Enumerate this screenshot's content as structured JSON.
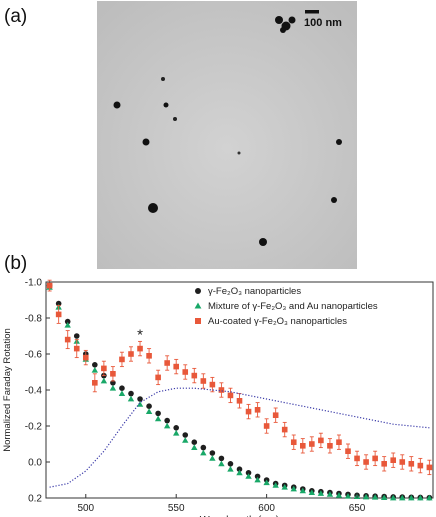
{
  "panel_a": {
    "label": "(a)",
    "scalebar_text": "100 nm",
    "background": "#c9c9c9"
  },
  "panel_b": {
    "label": "(b)"
  },
  "chart_data": {
    "type": "scatter",
    "xlabel": "Wavelength (nm)",
    "ylabel": "Normalized Faraday Rotation",
    "xlim": [
      478,
      692
    ],
    "ylim": [
      -1.0,
      0.2
    ],
    "y_inverted": true,
    "x_ticks": [
      500,
      550,
      600,
      650
    ],
    "y_ticks": [
      "-1.0",
      "-0.8",
      "-0.6",
      "-0.4",
      "-0.2",
      "0.0",
      "0.2"
    ],
    "y_tick_values": [
      -1.0,
      -0.8,
      -0.6,
      -0.4,
      -0.2,
      0.0,
      0.2
    ],
    "annotation": "*",
    "annotation_x": 530,
    "annotation_y": -0.68,
    "legend_position": "top-right",
    "series": [
      {
        "name": "γ-Fe₂O₃ nanoparticles",
        "marker": "circle",
        "color": "#1f1f1f",
        "x": [
          480,
          485,
          490,
          495,
          500,
          505,
          510,
          515,
          520,
          525,
          530,
          535,
          540,
          545,
          550,
          555,
          560,
          565,
          570,
          575,
          580,
          585,
          590,
          595,
          600,
          605,
          610,
          615,
          620,
          625,
          630,
          635,
          640,
          645,
          650,
          655,
          660,
          665,
          670,
          675,
          680,
          685,
          690
        ],
        "y": [
          -0.98,
          -0.88,
          -0.78,
          -0.7,
          -0.6,
          -0.54,
          -0.48,
          -0.44,
          -0.41,
          -0.38,
          -0.35,
          -0.31,
          -0.27,
          -0.23,
          -0.19,
          -0.15,
          -0.11,
          -0.08,
          -0.05,
          -0.02,
          0.01,
          0.04,
          0.06,
          0.08,
          0.1,
          0.12,
          0.13,
          0.14,
          0.15,
          0.16,
          0.165,
          0.17,
          0.175,
          0.18,
          0.185,
          0.188,
          0.19,
          0.192,
          0.194,
          0.195,
          0.196,
          0.197,
          0.198
        ]
      },
      {
        "name": "Mixture of γ-Fe₂O₃ and Au nanoparticles",
        "marker": "triangle",
        "color": "#19a868",
        "x": [
          480,
          485,
          490,
          495,
          500,
          505,
          510,
          515,
          520,
          525,
          530,
          535,
          540,
          545,
          550,
          555,
          560,
          565,
          570,
          575,
          580,
          585,
          590,
          595,
          600,
          605,
          610,
          615,
          620,
          625,
          630,
          635,
          640,
          645,
          650,
          655,
          660,
          665,
          670,
          675,
          680,
          685,
          690
        ],
        "y": [
          -0.97,
          -0.86,
          -0.76,
          -0.67,
          -0.57,
          -0.51,
          -0.45,
          -0.41,
          -0.38,
          -0.35,
          -0.32,
          -0.28,
          -0.24,
          -0.2,
          -0.16,
          -0.12,
          -0.08,
          -0.05,
          -0.02,
          0.01,
          0.04,
          0.06,
          0.08,
          0.1,
          0.115,
          0.13,
          0.14,
          0.15,
          0.16,
          0.17,
          0.175,
          0.18,
          0.185,
          0.19,
          0.192,
          0.194,
          0.196,
          0.198,
          0.2,
          0.2,
          0.2,
          0.2,
          0.2
        ]
      },
      {
        "name": "Au-coated γ-Fe₂O₃ nanoparticles",
        "marker": "square",
        "color": "#e8583a",
        "x": [
          480,
          485,
          490,
          495,
          500,
          505,
          510,
          515,
          520,
          525,
          530,
          535,
          540,
          545,
          550,
          555,
          560,
          565,
          570,
          575,
          580,
          585,
          590,
          595,
          600,
          605,
          610,
          615,
          620,
          625,
          630,
          635,
          640,
          645,
          650,
          655,
          660,
          665,
          670,
          675,
          680,
          685,
          690
        ],
        "y": [
          -0.98,
          -0.82,
          -0.68,
          -0.63,
          -0.58,
          -0.44,
          -0.52,
          -0.49,
          -0.57,
          -0.6,
          -0.63,
          -0.59,
          -0.47,
          -0.55,
          -0.53,
          -0.5,
          -0.48,
          -0.45,
          -0.43,
          -0.4,
          -0.37,
          -0.34,
          -0.28,
          -0.29,
          -0.2,
          -0.26,
          -0.18,
          -0.11,
          -0.09,
          -0.1,
          -0.12,
          -0.09,
          -0.11,
          -0.06,
          -0.02,
          0.0,
          -0.02,
          0.01,
          -0.01,
          0.0,
          0.01,
          0.02,
          0.03
        ],
        "err": [
          0.03,
          0.05,
          0.05,
          0.05,
          0.04,
          0.05,
          0.04,
          0.04,
          0.04,
          0.04,
          0.04,
          0.04,
          0.04,
          0.04,
          0.04,
          0.04,
          0.04,
          0.04,
          0.04,
          0.04,
          0.04,
          0.04,
          0.04,
          0.04,
          0.04,
          0.04,
          0.04,
          0.04,
          0.04,
          0.04,
          0.04,
          0.04,
          0.04,
          0.04,
          0.04,
          0.04,
          0.04,
          0.04,
          0.04,
          0.04,
          0.04,
          0.04,
          0.04
        ]
      },
      {
        "marker": "dotted-line",
        "color": "#3a3aa8",
        "x": [
          480,
          490,
          500,
          510,
          520,
          530,
          540,
          550,
          560,
          570,
          580,
          590,
          600,
          610,
          620,
          630,
          640,
          650,
          660,
          670,
          680,
          690
        ],
        "y": [
          0.14,
          0.12,
          0.05,
          -0.06,
          -0.2,
          -0.33,
          -0.39,
          -0.41,
          -0.41,
          -0.4,
          -0.39,
          -0.37,
          -0.35,
          -0.33,
          -0.31,
          -0.29,
          -0.27,
          -0.25,
          -0.23,
          -0.21,
          -0.2,
          -0.19
        ]
      }
    ]
  }
}
